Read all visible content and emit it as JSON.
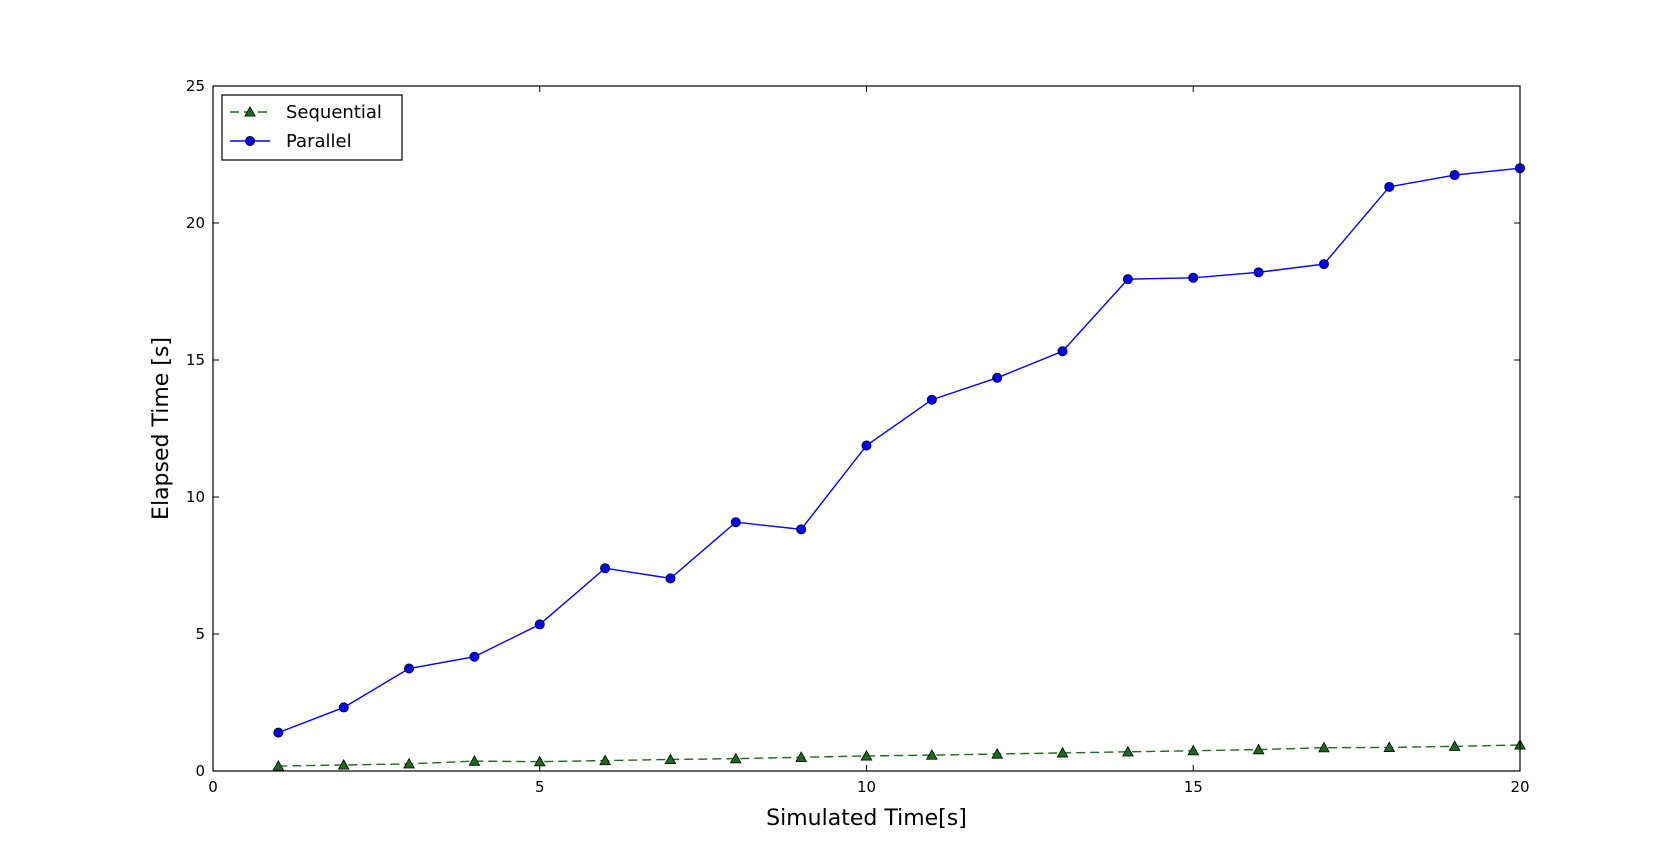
{
  "chart_data": {
    "type": "line",
    "title": "",
    "xlabel": "Simulated Time[s]",
    "ylabel": "Elapsed Time [s]",
    "xlim": [
      0,
      20
    ],
    "ylim": [
      0,
      25
    ],
    "x_ticks": [
      "0",
      "5",
      "10",
      "15",
      "20"
    ],
    "y_ticks": [
      "0",
      "5",
      "10",
      "15",
      "20",
      "25"
    ],
    "grid": false,
    "legend_position": "top-left",
    "x": [
      1,
      2,
      3,
      4,
      5,
      6,
      7,
      8,
      9,
      10,
      11,
      12,
      13,
      14,
      15,
      16,
      17,
      18,
      19,
      20
    ],
    "series": [
      {
        "name": "Sequential",
        "color": "#1a6b1a",
        "marker": "triangle",
        "line_style": "dashed",
        "values": [
          0.18,
          0.22,
          0.26,
          0.36,
          0.34,
          0.38,
          0.42,
          0.45,
          0.5,
          0.55,
          0.58,
          0.62,
          0.66,
          0.7,
          0.74,
          0.78,
          0.85,
          0.86,
          0.9,
          0.95
        ]
      },
      {
        "name": "Parallel",
        "color": "#0000ff",
        "marker": "circle",
        "line_style": "solid",
        "values": [
          1.4,
          2.32,
          3.74,
          4.17,
          5.35,
          7.4,
          7.03,
          9.08,
          8.82,
          11.88,
          13.55,
          14.35,
          15.32,
          17.95,
          18.0,
          18.2,
          18.5,
          21.32,
          21.75,
          22.0
        ]
      }
    ]
  }
}
